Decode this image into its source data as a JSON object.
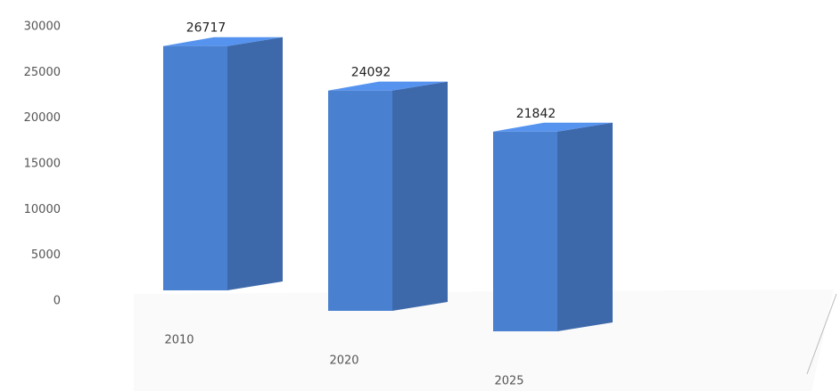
{
  "chart_data": {
    "type": "bar3d",
    "categories": [
      "2010",
      "2020",
      "2025"
    ],
    "values": [
      26717,
      24092,
      21842
    ],
    "color": "#4a80d0",
    "ylim": [
      0,
      30000
    ],
    "yticks": [
      0,
      5000,
      10000,
      15000,
      20000,
      25000,
      30000
    ]
  }
}
